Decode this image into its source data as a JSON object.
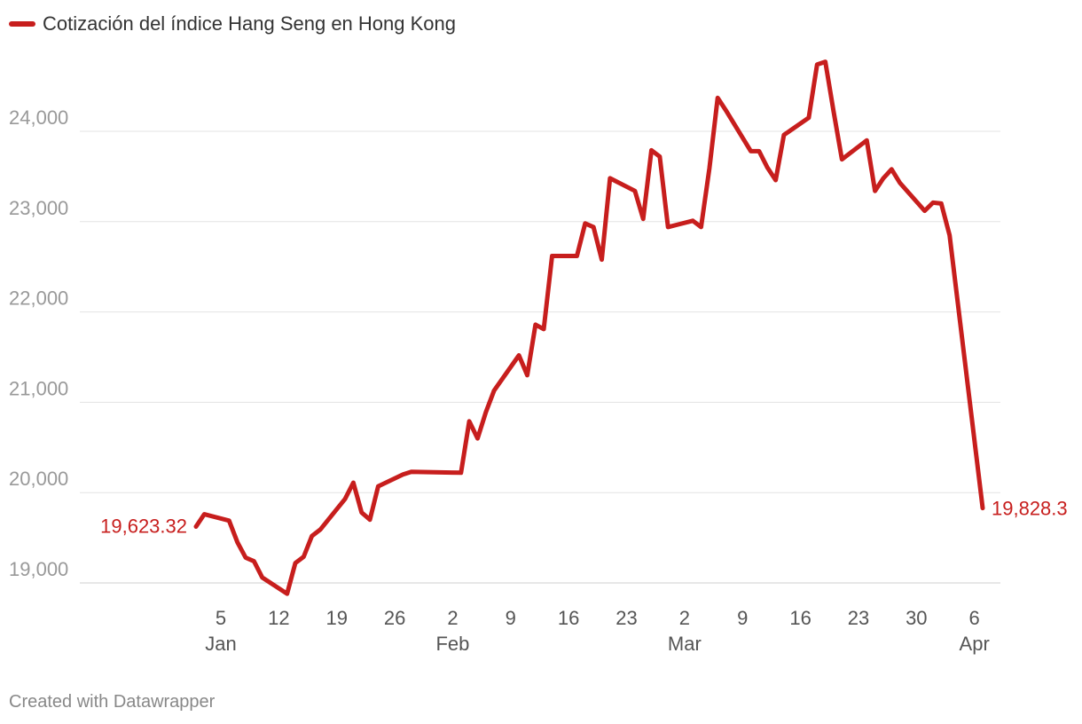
{
  "legend": {
    "label": "Cotización del índice Hang Seng en Hong Kong",
    "color": "#c71e1d"
  },
  "footer": "Created with Datawrapper",
  "chart_data": {
    "type": "line",
    "title": "",
    "xlabel": "",
    "ylabel": "",
    "ylim": [
      18800,
      24900
    ],
    "xlim": [
      "2025-01-02",
      "2025-04-07"
    ],
    "grid": true,
    "legend_position": "top-left",
    "y_ticks": [
      "19,000",
      "20,000",
      "21,000",
      "22,000",
      "23,000",
      "24,000"
    ],
    "y_tick_values": [
      19000,
      20000,
      21000,
      22000,
      23000,
      24000
    ],
    "x_ticks": [
      {
        "date": "2025-01-05",
        "day": "5",
        "month": "Jan"
      },
      {
        "date": "2025-01-12",
        "day": "12",
        "month": ""
      },
      {
        "date": "2025-01-19",
        "day": "19",
        "month": ""
      },
      {
        "date": "2025-01-26",
        "day": "26",
        "month": ""
      },
      {
        "date": "2025-02-02",
        "day": "2",
        "month": "Feb"
      },
      {
        "date": "2025-02-09",
        "day": "9",
        "month": ""
      },
      {
        "date": "2025-02-16",
        "day": "16",
        "month": ""
      },
      {
        "date": "2025-02-23",
        "day": "23",
        "month": ""
      },
      {
        "date": "2025-03-02",
        "day": "2",
        "month": "Mar"
      },
      {
        "date": "2025-03-09",
        "day": "9",
        "month": ""
      },
      {
        "date": "2025-03-16",
        "day": "16",
        "month": ""
      },
      {
        "date": "2025-03-23",
        "day": "23",
        "month": ""
      },
      {
        "date": "2025-03-30",
        "day": "30",
        "month": ""
      },
      {
        "date": "2025-04-06",
        "day": "6",
        "month": "Apr"
      }
    ],
    "start_label": "19,623.32",
    "end_label": "19,828.3",
    "series": [
      {
        "name": "Cotización del índice Hang Seng en Hong Kong",
        "color": "#c71e1d",
        "points": [
          [
            "2025-01-02",
            19623.32
          ],
          [
            "2025-01-03",
            19760
          ],
          [
            "2025-01-06",
            19690
          ],
          [
            "2025-01-07",
            19450
          ],
          [
            "2025-01-08",
            19280
          ],
          [
            "2025-01-09",
            19240
          ],
          [
            "2025-01-10",
            19060
          ],
          [
            "2025-01-13",
            18880
          ],
          [
            "2025-01-14",
            19220
          ],
          [
            "2025-01-15",
            19290
          ],
          [
            "2025-01-16",
            19520
          ],
          [
            "2025-01-17",
            19590
          ],
          [
            "2025-01-20",
            19930
          ],
          [
            "2025-01-21",
            20110
          ],
          [
            "2025-01-22",
            19780
          ],
          [
            "2025-01-23",
            19700
          ],
          [
            "2025-01-24",
            20070
          ],
          [
            "2025-01-27",
            20200
          ],
          [
            "2025-01-28",
            20230
          ],
          [
            "2025-02-03",
            20220
          ],
          [
            "2025-02-04",
            20790
          ],
          [
            "2025-02-05",
            20600
          ],
          [
            "2025-02-06",
            20890
          ],
          [
            "2025-02-07",
            21130
          ],
          [
            "2025-02-10",
            21520
          ],
          [
            "2025-02-11",
            21300
          ],
          [
            "2025-02-12",
            21860
          ],
          [
            "2025-02-13",
            21810
          ],
          [
            "2025-02-14",
            22620
          ],
          [
            "2025-02-17",
            22620
          ],
          [
            "2025-02-18",
            22980
          ],
          [
            "2025-02-19",
            22940
          ],
          [
            "2025-02-20",
            22580
          ],
          [
            "2025-02-21",
            23480
          ],
          [
            "2025-02-24",
            23340
          ],
          [
            "2025-02-25",
            23030
          ],
          [
            "2025-02-26",
            23790
          ],
          [
            "2025-02-27",
            23720
          ],
          [
            "2025-02-28",
            22940
          ],
          [
            "2025-03-03",
            23010
          ],
          [
            "2025-03-04",
            22940
          ],
          [
            "2025-03-05",
            23590
          ],
          [
            "2025-03-06",
            24370
          ],
          [
            "2025-03-07",
            24230
          ],
          [
            "2025-03-10",
            23780
          ],
          [
            "2025-03-11",
            23780
          ],
          [
            "2025-03-12",
            23600
          ],
          [
            "2025-03-13",
            23460
          ],
          [
            "2025-03-14",
            23960
          ],
          [
            "2025-03-17",
            24150
          ],
          [
            "2025-03-18",
            24740
          ],
          [
            "2025-03-19",
            24770
          ],
          [
            "2025-03-20",
            24220
          ],
          [
            "2025-03-21",
            23690
          ],
          [
            "2025-03-24",
            23900
          ],
          [
            "2025-03-25",
            23340
          ],
          [
            "2025-03-26",
            23480
          ],
          [
            "2025-03-27",
            23580
          ],
          [
            "2025-03-28",
            23430
          ],
          [
            "2025-03-31",
            23120
          ],
          [
            "2025-04-01",
            23210
          ],
          [
            "2025-04-02",
            23200
          ],
          [
            "2025-04-03",
            22850
          ],
          [
            "2025-04-07",
            19828.3
          ]
        ]
      }
    ]
  }
}
